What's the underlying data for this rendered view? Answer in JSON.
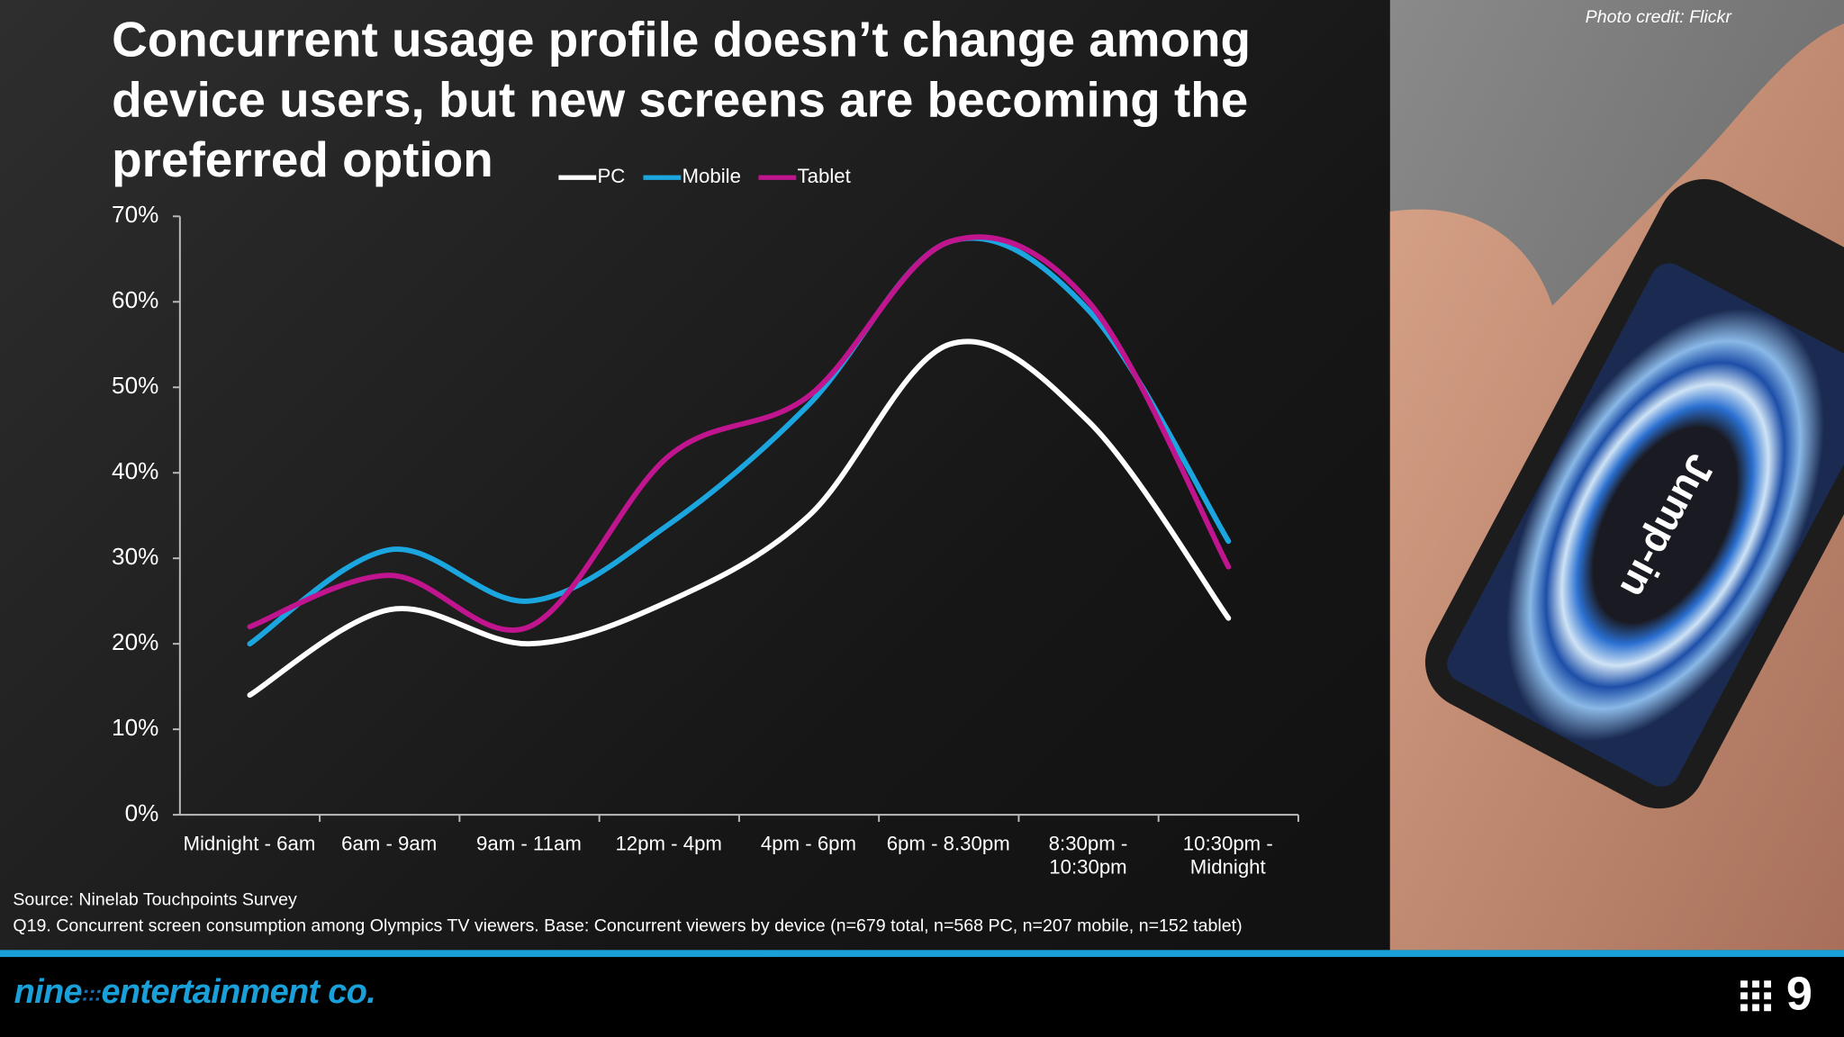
{
  "chart_data": {
    "type": "line",
    "title": "Concurrent usage profile doesn’t change among device users, but new screens are becoming the preferred option",
    "categories": [
      "Midnight - 6am",
      "6am - 9am",
      "9am - 11am",
      "12pm - 4pm",
      "4pm - 6pm",
      "6pm - 8.30pm",
      "8:30pm - 10:30pm",
      "10:30pm - Midnight"
    ],
    "series": [
      {
        "name": "PC",
        "color": "#ffffff",
        "values": [
          14,
          24,
          20,
          25,
          35,
          55,
          46,
          23
        ]
      },
      {
        "name": "Mobile",
        "color": "#1ba6e0",
        "values": [
          20,
          31,
          25,
          34,
          48,
          67,
          59,
          32
        ]
      },
      {
        "name": "Tablet",
        "color": "#c0158f",
        "values": [
          22,
          28,
          22,
          42,
          49,
          67,
          60,
          29
        ]
      }
    ],
    "ylim": [
      0,
      70
    ],
    "yticks": [
      {
        "value": 0,
        "label": "0%"
      },
      {
        "value": 10,
        "label": "10%"
      },
      {
        "value": 20,
        "label": "20%"
      },
      {
        "value": 30,
        "label": "30%"
      },
      {
        "value": 40,
        "label": "40%"
      },
      {
        "value": 50,
        "label": "50%"
      },
      {
        "value": 60,
        "label": "60%"
      },
      {
        "value": 70,
        "label": "70%"
      }
    ],
    "legend": "top"
  },
  "source": "Source: Ninelab Touchpoints Survey",
  "note": "Q19. Concurrent screen consumption among Olympics TV viewers. Base: Concurrent viewers by device (n=679 total, n=568 PC, n=207 mobile, n=152 tablet)",
  "photo_credit": "Photo credit: Flickr",
  "photo_text": "Jump-in",
  "brand": {
    "name": "nine",
    "suffix": "entertainment co."
  }
}
